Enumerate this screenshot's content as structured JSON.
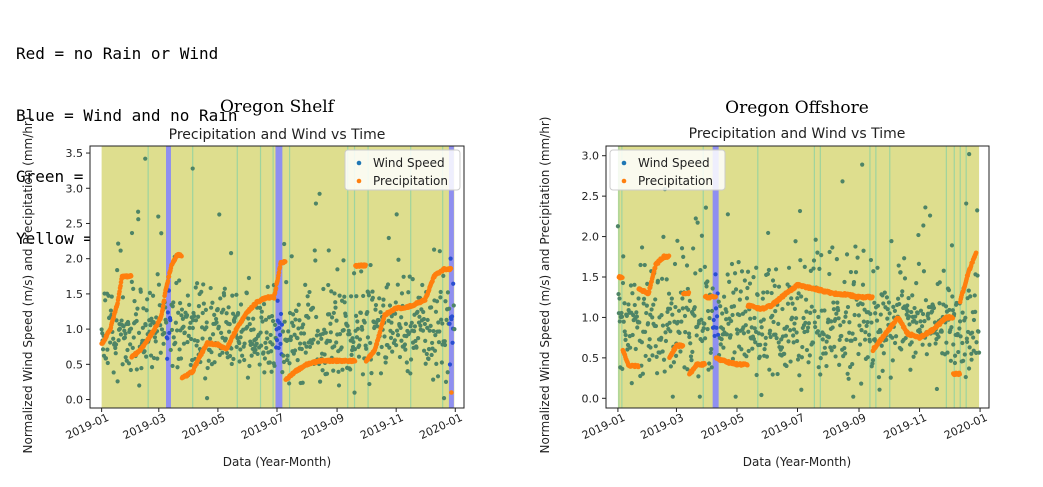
{
  "legend_lines": [
    "Red = no Rain or Wind",
    "Blue = Wind and no Rain",
    "Green = Rain and no Wind",
    "Yellow = both Rain and Wind"
  ],
  "colors": {
    "background_both": "#dede8e",
    "band_wind": "#8f8ff0",
    "band_rain": "#9ed49e",
    "wind_speed": "#1f77b4",
    "precipitation": "#ff7f0e",
    "wind_speed_on_yellow": "#4e8466"
  },
  "chart_data": [
    {
      "type": "scatter",
      "panel_title": "Oregon Shelf",
      "title": "Precipitation and Wind vs Time",
      "xlabel": "Data (Year-Month)",
      "ylabel": "Normalized Wind Speed (m/s) and Precipitation (mm/hr)",
      "x_range": [
        "2018-12-20",
        "2020-01-10"
      ],
      "ylim": [
        -0.12,
        3.6
      ],
      "x_ticks": [
        "2019-01",
        "2019-03",
        "2019-05",
        "2019-07",
        "2019-09",
        "2019-11",
        "2020-01"
      ],
      "y_ticks": [
        "0.0",
        "0.5",
        "1.0",
        "1.5",
        "2.0",
        "2.5",
        "3.0",
        "3.5"
      ],
      "legend_position": "upper right",
      "background_span": [
        "2019-01-01",
        "2019-12-31"
      ],
      "wind_bands": [
        [
          "2019-03-10",
          "2019-03-12"
        ],
        [
          "2019-07-01",
          "2019-07-05"
        ],
        [
          "2019-12-27",
          "2019-12-29"
        ]
      ],
      "rain_bands": [
        "2019-02-18",
        "2019-04-05",
        "2019-05-21",
        "2019-06-14",
        "2019-06-27",
        "2019-07-14",
        "2019-09-12",
        "2019-09-19",
        "2019-10-03",
        "2019-11-16",
        "2019-12-19"
      ],
      "wind_spikes": [
        {
          "date": "2019-02-15",
          "y": 3.42
        },
        {
          "date": "2019-04-05",
          "y": 3.28
        }
      ],
      "series": [
        {
          "name": "Wind Speed",
          "description": "daily normalized wind speed scattered around ~1.0"
        },
        {
          "name": "Precipitation",
          "points": [
            [
              "2019-01-01",
              0.78
            ],
            [
              "2019-01-10",
              1.0
            ],
            [
              "2019-01-18",
              1.4
            ],
            [
              "2019-01-22",
              1.75
            ],
            [
              "2019-02-01",
              0.6
            ],
            [
              "2019-02-10",
              0.7
            ],
            [
              "2019-02-20",
              0.9
            ],
            [
              "2019-02-27",
              1.05
            ],
            [
              "2019-03-04",
              1.2
            ],
            [
              "2019-03-08",
              1.55
            ],
            [
              "2019-03-14",
              1.9
            ],
            [
              "2019-03-20",
              2.05
            ],
            [
              "2019-03-25",
              0.3
            ],
            [
              "2019-04-05",
              0.4
            ],
            [
              "2019-04-12",
              0.6
            ],
            [
              "2019-04-20",
              0.8
            ],
            [
              "2019-05-01",
              0.78
            ],
            [
              "2019-05-10",
              0.72
            ],
            [
              "2019-05-20",
              1.0
            ],
            [
              "2019-06-01",
              1.25
            ],
            [
              "2019-06-10",
              1.38
            ],
            [
              "2019-06-20",
              1.45
            ],
            [
              "2019-06-28",
              1.45
            ],
            [
              "2019-07-05",
              1.95
            ],
            [
              "2019-07-10",
              0.28
            ],
            [
              "2019-07-20",
              0.4
            ],
            [
              "2019-08-01",
              0.5
            ],
            [
              "2019-08-15",
              0.55
            ],
            [
              "2019-09-01",
              0.55
            ],
            [
              "2019-09-15",
              0.55
            ],
            [
              "2019-09-20",
              1.9
            ],
            [
              "2019-10-01",
              0.55
            ],
            [
              "2019-10-10",
              0.7
            ],
            [
              "2019-10-20",
              1.2
            ],
            [
              "2019-11-01",
              1.3
            ],
            [
              "2019-11-10",
              1.3
            ],
            [
              "2019-11-20",
              1.35
            ],
            [
              "2019-12-01",
              1.42
            ],
            [
              "2019-12-10",
              1.75
            ],
            [
              "2019-12-20",
              1.85
            ],
            [
              "2019-12-28",
              0.1
            ]
          ]
        }
      ]
    },
    {
      "type": "scatter",
      "panel_title": "Oregon Offshore",
      "title": "Precipitation and Wind vs Time",
      "xlabel": "Data (Year-Month)",
      "ylabel": "Normalized Wind Speed (m/s) and Precipitation (mm/hr)",
      "x_range": [
        "2018-12-20",
        "2020-01-10"
      ],
      "ylim": [
        -0.12,
        3.12
      ],
      "x_ticks": [
        "2019-01",
        "2019-03",
        "2019-05",
        "2019-07",
        "2019-09",
        "2019-11",
        "2020-01"
      ],
      "y_ticks": [
        "0.0",
        "0.5",
        "1.0",
        "1.5",
        "2.0",
        "2.5",
        "3.0"
      ],
      "legend_position": "upper left",
      "background_span": [
        "2019-01-01",
        "2019-12-31"
      ],
      "wind_bands": [
        [
          "2019-04-08",
          "2019-04-11"
        ]
      ],
      "rain_bands": [
        "2019-01-02",
        "2019-01-05",
        "2019-03-28",
        "2019-05-22",
        "2019-07-18",
        "2019-07-24",
        "2019-09-12",
        "2019-09-18",
        "2019-10-02",
        "2019-11-28",
        "2019-12-06",
        "2019-12-12",
        "2019-12-18"
      ],
      "wind_spikes": [
        {
          "date": "2019-12-21",
          "y": 3.02
        }
      ],
      "series": [
        {
          "name": "Wind Speed",
          "description": "daily normalized wind speed scattered around ~1.0"
        },
        {
          "name": "Precipitation",
          "points": [
            [
              "2019-01-02",
              1.5
            ],
            [
              "2019-01-06",
              0.6
            ],
            [
              "2019-01-12",
              0.4
            ],
            [
              "2019-01-22",
              1.35
            ],
            [
              "2019-02-01",
              1.3
            ],
            [
              "2019-02-08",
              1.65
            ],
            [
              "2019-02-16",
              1.75
            ],
            [
              "2019-02-22",
              0.5
            ],
            [
              "2019-03-01",
              0.65
            ],
            [
              "2019-03-08",
              1.3
            ],
            [
              "2019-03-14",
              0.3
            ],
            [
              "2019-03-22",
              0.42
            ],
            [
              "2019-03-30",
              1.25
            ],
            [
              "2019-04-10",
              0.5
            ],
            [
              "2019-04-20",
              0.45
            ],
            [
              "2019-05-01",
              0.42
            ],
            [
              "2019-05-12",
              1.15
            ],
            [
              "2019-05-25",
              1.1
            ],
            [
              "2019-06-05",
              1.15
            ],
            [
              "2019-06-20",
              1.3
            ],
            [
              "2019-07-01",
              1.4
            ],
            [
              "2019-07-20",
              1.35
            ],
            [
              "2019-08-05",
              1.3
            ],
            [
              "2019-08-20",
              1.28
            ],
            [
              "2019-09-02",
              1.25
            ],
            [
              "2019-09-15",
              0.6
            ],
            [
              "2019-09-28",
              0.8
            ],
            [
              "2019-10-10",
              1.0
            ],
            [
              "2019-10-20",
              0.8
            ],
            [
              "2019-11-01",
              0.75
            ],
            [
              "2019-11-15",
              0.85
            ],
            [
              "2019-11-28",
              1.0
            ],
            [
              "2019-12-05",
              0.3
            ],
            [
              "2019-12-12",
              1.2
            ],
            [
              "2019-12-20",
              1.55
            ],
            [
              "2019-12-28",
              1.8
            ]
          ]
        }
      ]
    }
  ]
}
